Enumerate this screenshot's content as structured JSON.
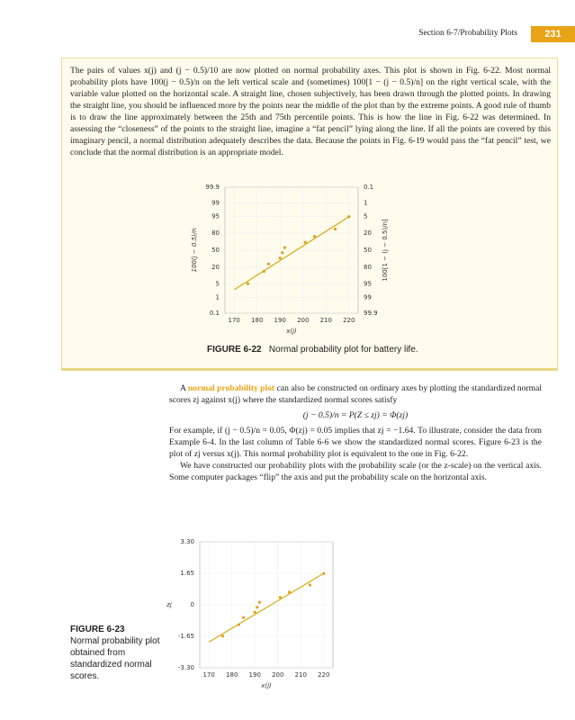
{
  "header": {
    "section": "Section 6-7/Probability Plots",
    "page": "231"
  },
  "box": {
    "text": "The pairs of values x(j) and (j − 0.5)/10 are now plotted on normal probability axes. This plot is shown in Fig. 6-22. Most normal probability plots have 100(j − 0.5)/n on the left vertical scale and (sometimes) 100[1 − (j − 0.5)/n] on the right vertical scale, with the variable value plotted on the horizontal scale. A straight line, chosen subjectively, has been drawn through the plotted points. In drawing the straight line, you should be influenced more by the points near the middle of the plot than by the extreme points. A good rule of thumb is to draw the line approximately between the 25th and 75th percentile points. This is how the line in Fig. 6-22 was determined. In assessing the “closeness” of the points to the straight line, imagine a “fat pencil” lying along the line. If all the points are covered by this imaginary pencil, a normal distribution adequately describes the data. Because the points in Fig. 6-19 would pass the “fat pencil” test, we conclude that the normal distribution is an appropriate model."
  },
  "body": {
    "p1_start": "A",
    "term": "normal probability plot",
    "p1_end": "can also be constructed on ordinary axes by plotting the standardized normal scores zj against x(j) where the standardized normal scores satisfy",
    "equation": "(j − 0.5)/n = P(Z ≤ zj) = Φ(zj)",
    "p2": "For example, if (j − 0.5)/n = 0.05, Φ(zj) = 0.05 implies that zj = −1.64. To illustrate, consider the data from Example 6-4. In the last column of Table 6-6 we show the standardized normal scores. Figure 6-23 is the plot of zj versus x(j). This normal probability plot is equivalent to the one in Fig. 6-22.",
    "p3": "We have constructed our probability plots with the probability scale (or the z-scale) on the vertical axis. Some computer packages “flip” the axis and put the probability scale on the horizontal axis."
  },
  "chart_data": [
    {
      "type": "scatter",
      "caption": {
        "label": "FIGURE 6-22",
        "text": "Normal probability plot for battery life."
      },
      "x_label": "x(j)",
      "y_label": "100(j − 0.5)/n",
      "y2_label": "100[1 − (j − 0.5)/n]",
      "x": [
        176,
        183,
        185,
        190,
        191,
        192,
        201,
        205,
        214,
        220
      ],
      "values": [
        5,
        15,
        25,
        35,
        45,
        55,
        65,
        75,
        85,
        95
      ],
      "color": "#e0a020",
      "line_color": "#d4aa10",
      "trend_line": {
        "x": [
          170,
          220
        ],
        "values": [
          2.6,
          95
        ]
      },
      "xlim": [
        166,
        224
      ],
      "xticks": [
        170,
        180,
        190,
        200,
        210,
        220
      ],
      "yscale": "probability",
      "ylim": [
        0.1,
        99.9
      ],
      "yticks": [
        99.9,
        99,
        95,
        80,
        50,
        20,
        5,
        1,
        0.1
      ],
      "y2lim": [
        99.9,
        0.1
      ],
      "y2ticks": [
        0.1,
        1,
        5,
        20,
        50,
        80,
        95,
        99,
        99.9
      ],
      "grid": true
    },
    {
      "type": "scatter",
      "caption": {
        "label": "FIGURE 6-23",
        "text": "Normal probability plot obtained from standardized normal scores."
      },
      "x_label": "x(j)",
      "y_label": "zj",
      "x": [
        176,
        183,
        185,
        190,
        191,
        192,
        201,
        205,
        214,
        220
      ],
      "values": [
        -1.64,
        -1.04,
        -0.67,
        -0.39,
        -0.13,
        0.13,
        0.39,
        0.67,
        1.04,
        1.64
      ],
      "color": "#e0a020",
      "line_color": "#d4aa10",
      "trend_line": {
        "x": [
          170,
          220
        ],
        "values": [
          -1.95,
          1.65
        ]
      },
      "xlim": [
        166,
        224
      ],
      "xticks": [
        170,
        180,
        190,
        200,
        210,
        220
      ],
      "yscale": "linear",
      "ylim": [
        -3.3,
        3.3
      ],
      "yticks": [
        {
          "value": 3.3,
          "label": "3.30"
        },
        1.65,
        0,
        -1.65,
        {
          "value": -3.3,
          "label": "-3.30"
        }
      ],
      "grid": true
    }
  ]
}
